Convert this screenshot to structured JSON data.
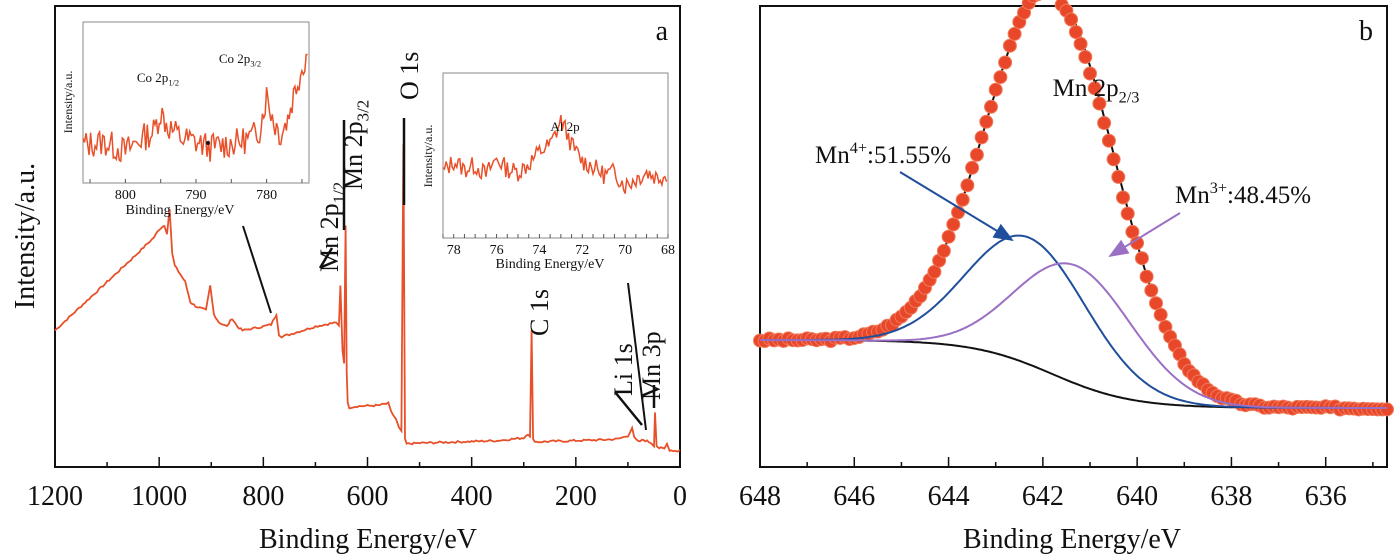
{
  "chart_data": [
    {
      "panel": "a",
      "type": "line",
      "title": "",
      "xlabel": "Binding Energy/eV",
      "ylabel": "Intensity/a.u.",
      "xlim": [
        1200,
        0
      ],
      "x_reversed": true,
      "xticks": [
        1200,
        1000,
        800,
        600,
        400,
        200,
        0
      ],
      "yticks": [],
      "grid": false,
      "line_color": "#e8502a",
      "panel_label": "a",
      "series": [
        {
          "name": "survey",
          "x": [
            1200,
            1150,
            1100,
            1050,
            1010,
            1000,
            990,
            985,
            980,
            975,
            970,
            960,
            950,
            940,
            930,
            910,
            902,
            895,
            885,
            870,
            860,
            850,
            840,
            820,
            800,
            785,
            775,
            770,
            765,
            750,
            700,
            660,
            655,
            652,
            648,
            645,
            642,
            640,
            638,
            635,
            620,
            580,
            560,
            555,
            545,
            540,
            535,
            531,
            528,
            525,
            500,
            450,
            400,
            350,
            300,
            292,
            288,
            285,
            282,
            275,
            250,
            200,
            150,
            120,
            100,
            92,
            88,
            84,
            80,
            70,
            60,
            55,
            50,
            48,
            45,
            40,
            30,
            25,
            20,
            10,
            5,
            0
          ],
          "y": [
            30,
            36,
            42,
            48,
            53,
            55,
            56,
            54,
            60,
            49,
            46,
            44,
            42,
            37,
            36,
            35,
            41,
            34,
            32,
            31,
            33,
            31,
            30,
            30.5,
            31,
            31.5,
            34,
            29,
            28.5,
            29,
            31,
            32,
            31,
            41,
            25,
            22,
            56,
            20,
            12,
            11,
            11.3,
            11.5,
            12,
            10,
            8,
            6,
            5,
            76,
            3,
            2,
            2.2,
            2.4,
            2.6,
            2.8,
            3.5,
            4.5,
            4,
            30,
            3,
            2.5,
            2.6,
            2.8,
            3.0,
            3.2,
            4.0,
            6.0,
            3.5,
            3.0,
            2.5,
            3,
            2.5,
            2.2,
            1.5,
            10,
            1.5,
            1.0,
            0.8,
            2.0,
            0.5,
            0.3,
            0.2,
            0.5
          ]
        }
      ],
      "annotations": [
        {
          "text": "Mn 2p",
          "sub": "1/2",
          "x": 653,
          "rotated": true
        },
        {
          "text": "Mn 2p",
          "sub": "3/2",
          "x": 641,
          "rotated": true
        },
        {
          "text": "O 1s",
          "x": 530,
          "rotated": true
        },
        {
          "text": "C 1s",
          "x": 284,
          "rotated": true
        },
        {
          "text": "Li 1s",
          "x": 55,
          "rotated": true
        },
        {
          "text": "Mn 3p",
          "x": 49,
          "rotated": true
        }
      ],
      "insets": [
        {
          "name": "co-2p-inset",
          "type": "line",
          "xlabel": "Binding Energy/eV",
          "ylabel": "Intensity/a.u.",
          "xlim": [
            806,
            774
          ],
          "xticks": [
            800,
            790,
            780
          ],
          "annotations": [
            {
              "text": "Co 2p",
              "sub": "1/2",
              "x": 795
            },
            {
              "text": "Co 2p",
              "sub": "3/2",
              "x": 780
            }
          ],
          "x": [
            806,
            803,
            800,
            798,
            796,
            795,
            794,
            792,
            790,
            788,
            786,
            784,
            782,
            781,
            780,
            779,
            778,
            777,
            776,
            775,
            774
          ],
          "y": [
            20,
            22,
            15,
            24,
            30,
            45,
            34,
            25,
            22,
            18,
            20,
            22,
            26,
            32,
            58,
            38,
            28,
            40,
            62,
            78,
            95
          ]
        },
        {
          "name": "al-2p-inset",
          "type": "line",
          "xlabel": "Binding Energy/eV",
          "ylabel": "Intensity/a.u.",
          "xlim": [
            78.5,
            68
          ],
          "xticks": [
            78,
            76,
            74,
            72,
            70,
            68
          ],
          "annotations": [
            {
              "text": "Al 2p",
              "x": 73
            }
          ],
          "x": [
            78.5,
            78,
            77.5,
            77,
            76.5,
            76,
            75.5,
            75,
            74.5,
            74,
            73.5,
            73.2,
            73,
            72.8,
            72.5,
            72,
            71.5,
            71,
            70.5,
            70,
            69.5,
            69,
            68.5,
            68
          ],
          "y": [
            40,
            48,
            42,
            45,
            38,
            50,
            42,
            40,
            46,
            55,
            60,
            70,
            78,
            72,
            60,
            48,
            44,
            38,
            40,
            30,
            35,
            40,
            36,
            38
          ]
        }
      ]
    },
    {
      "panel": "b",
      "type": "scatter",
      "title": "",
      "xlabel": "Binding Energy/eV",
      "ylabel": "",
      "xlim": [
        648,
        634.7
      ],
      "x_reversed": true,
      "xticks": [
        648,
        646,
        644,
        642,
        640,
        638,
        636
      ],
      "yticks": [],
      "grid": false,
      "panel_label": "b",
      "peak_label": {
        "text": "Mn 2p",
        "sub": "2/3"
      },
      "series": [
        {
          "name": "experimental",
          "kind": "markers",
          "color": "#e8472a"
        },
        {
          "name": "Mn4+ component",
          "kind": "line",
          "color": "#1f4e9c",
          "center": 642.3,
          "fwhm": 3.0,
          "height": 0.44,
          "area_percent": 51.55,
          "label": "Mn",
          "sup": "4+",
          "value_text": ":51.55%"
        },
        {
          "name": "Mn3+ component",
          "kind": "line",
          "color": "#9b6fc4",
          "center": 641.3,
          "fwhm": 2.9,
          "height": 0.41,
          "area_percent": 48.45,
          "label": "Mn",
          "sup": "3+",
          "value_text": ":48.45%"
        },
        {
          "name": "background",
          "kind": "line",
          "color": "#111111"
        },
        {
          "name": "envelope",
          "kind": "line",
          "color": "#111111"
        }
      ]
    }
  ]
}
